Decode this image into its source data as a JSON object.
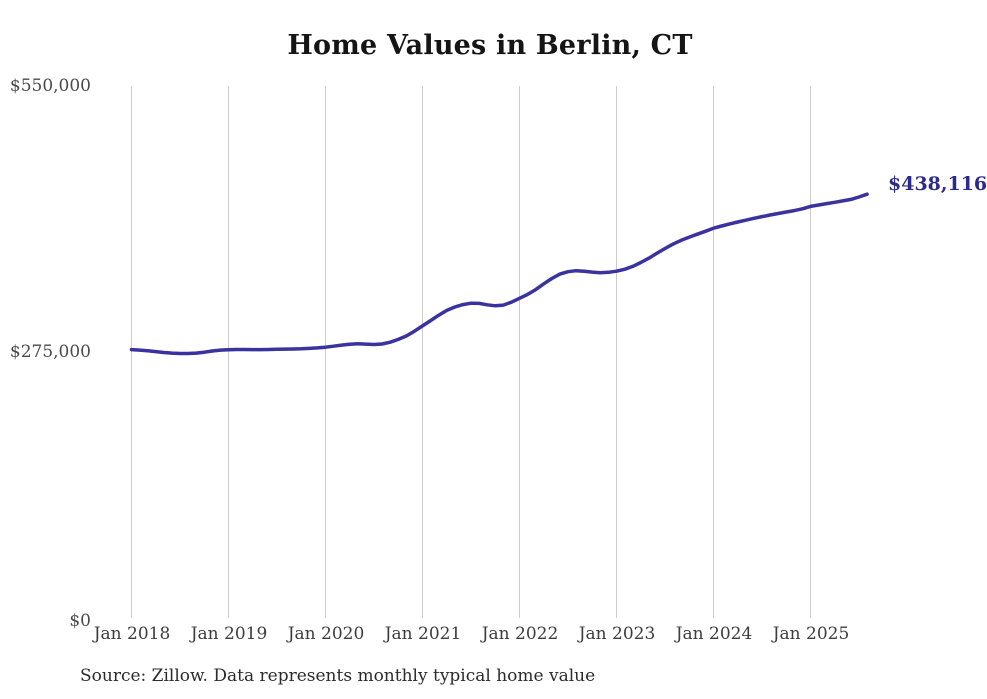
{
  "title": "Home Values in Berlin, CT",
  "source_note": "Source: Zillow. Data represents monthly typical home value",
  "end_value_label": "$438,116",
  "colors": {
    "line": "#39329f",
    "end_label": "#2e2a87",
    "grid": "#cccccc",
    "title_text": "#151515",
    "x_tick_text": "#3d3d3d",
    "y_tick_text": "#4a4a4a",
    "source_text": "#2b2b2b",
    "background": "#ffffff"
  },
  "chart_data": {
    "type": "line",
    "title": "Home Values in Berlin, CT",
    "xlabel": "",
    "ylabel": "",
    "ylim": [
      0,
      550000
    ],
    "grid": "vertical-only",
    "legend": "none",
    "x_start_month": "2018-01",
    "x_end_month": "2025-08",
    "x_tick_labels": [
      "Jan 2018",
      "Jan 2019",
      "Jan 2020",
      "Jan 2021",
      "Jan 2022",
      "Jan 2023",
      "Jan 2024",
      "Jan 2025"
    ],
    "y_tick_labels": [
      "$0",
      "$275,000",
      "$550,000"
    ],
    "end_annotation": {
      "text": "$438,116",
      "value": 438116,
      "month": "2025-08"
    },
    "series": [
      {
        "name": "Monthly typical home value (USD)",
        "values": [
          277500,
          277000,
          276300,
          275400,
          274500,
          273900,
          273500,
          273400,
          273900,
          274800,
          276000,
          277000,
          277400,
          277600,
          277600,
          277500,
          277500,
          277600,
          277800,
          278000,
          278100,
          278300,
          278700,
          279200,
          280000,
          281000,
          282100,
          283000,
          283500,
          283200,
          282800,
          283300,
          285100,
          288000,
          291500,
          296500,
          302000,
          307500,
          313000,
          318000,
          321500,
          324000,
          325500,
          325200,
          323800,
          322800,
          323500,
          326500,
          330500,
          334500,
          339500,
          345500,
          351000,
          355500,
          358000,
          359000,
          358500,
          357600,
          357000,
          357400,
          358500,
          360500,
          363500,
          367500,
          372000,
          377000,
          382000,
          386500,
          390500,
          393800,
          396800,
          399800,
          403000,
          405300,
          407400,
          409400,
          411300,
          413200,
          415000,
          416600,
          418200,
          419700,
          421200,
          423000,
          425500,
          427000,
          428400,
          429800,
          431200,
          432800,
          435200,
          438116
        ]
      }
    ]
  }
}
